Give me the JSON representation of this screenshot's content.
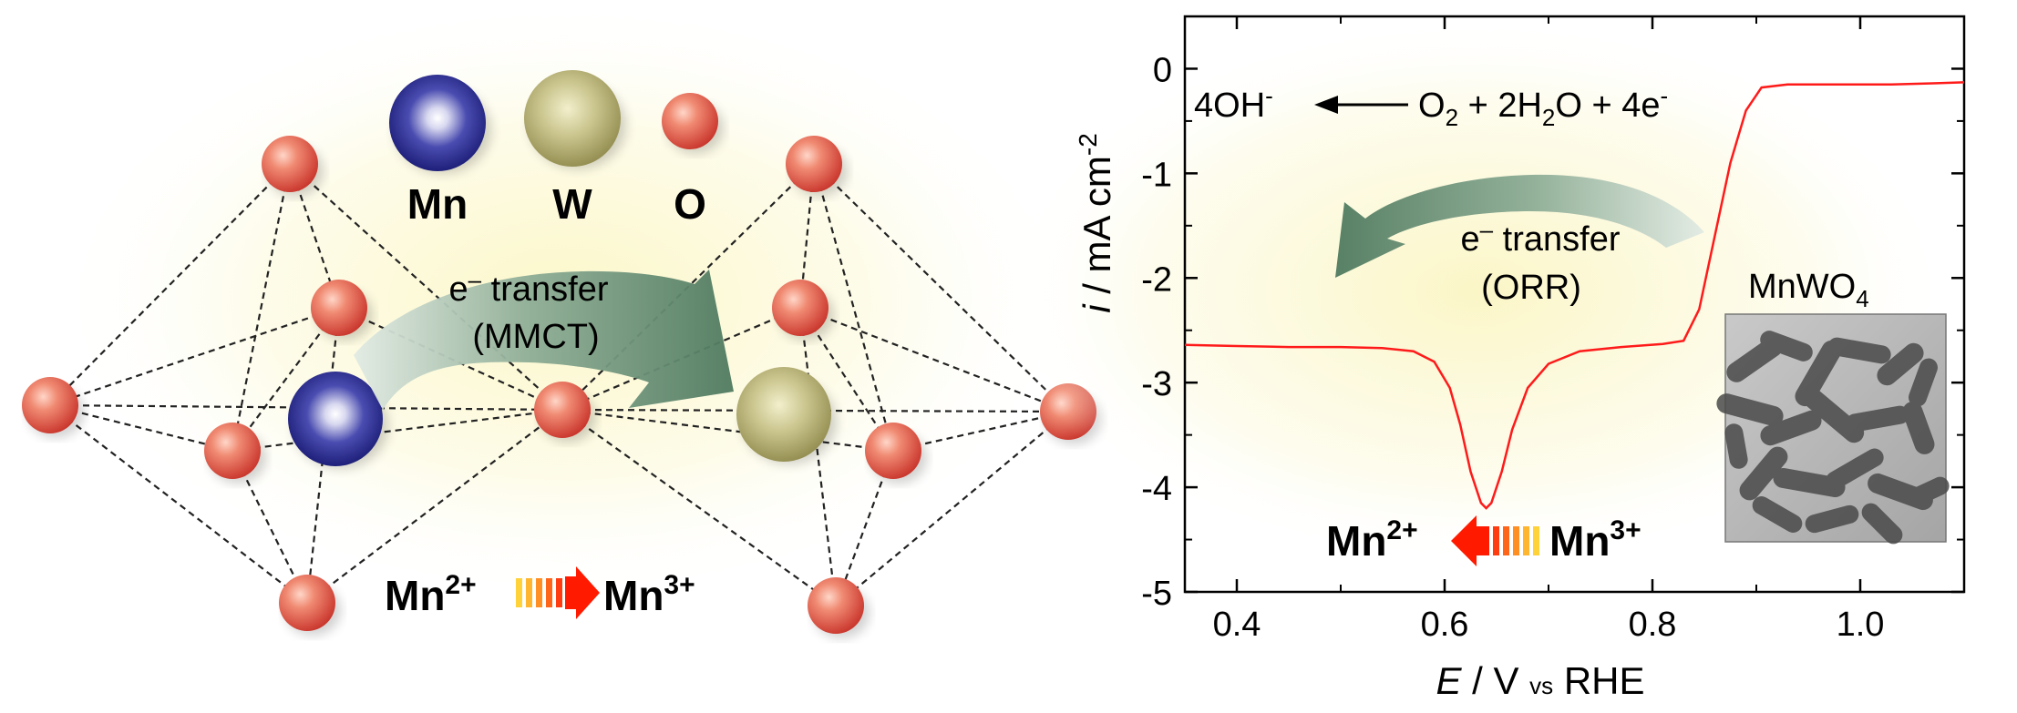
{
  "legend_atoms": [
    {
      "symbol": "Mn",
      "color": "#23249a"
    },
    {
      "symbol": "W",
      "color": "#a9a35d"
    },
    {
      "symbol": "O",
      "color": "#e5483b"
    }
  ],
  "structure": {
    "transfer_line1": "e",
    "transfer_sup": "–",
    "transfer_word": " transfer",
    "transfer_line2": "(MMCT)",
    "ox_left": "Mn",
    "ox_left_sup": "2+",
    "ox_right": "Mn",
    "ox_right_sup": "3+"
  },
  "chart_data": {
    "type": "line",
    "x_axis": {
      "label_var": "E",
      "label_unit": " / V ",
      "label_sub": "vs",
      "label_ref": " RHE",
      "range": [
        0.35,
        1.1
      ],
      "ticks": [
        "0.4",
        "0.6",
        "0.8",
        "1.0"
      ],
      "tick_values": [
        0.4,
        0.6,
        0.8,
        1.0
      ]
    },
    "y_axis": {
      "label_var": "i",
      "label_unit": " / mA cm",
      "label_sup": "-2",
      "range": [
        -5,
        0.5
      ],
      "ticks": [
        "0",
        "-1",
        "-2",
        "-3",
        "-4",
        "-5"
      ],
      "tick_values": [
        0,
        -1,
        -2,
        -3,
        -4,
        -5
      ]
    },
    "series": [
      {
        "color": "#ff1a1a",
        "points": [
          [
            0.35,
            -2.64
          ],
          [
            0.4,
            -2.65
          ],
          [
            0.45,
            -2.66
          ],
          [
            0.5,
            -2.66
          ],
          [
            0.54,
            -2.67
          ],
          [
            0.57,
            -2.7
          ],
          [
            0.59,
            -2.8
          ],
          [
            0.605,
            -3.05
          ],
          [
            0.615,
            -3.4
          ],
          [
            0.625,
            -3.85
          ],
          [
            0.635,
            -4.15
          ],
          [
            0.64,
            -4.2
          ],
          [
            0.645,
            -4.15
          ],
          [
            0.655,
            -3.85
          ],
          [
            0.665,
            -3.45
          ],
          [
            0.68,
            -3.05
          ],
          [
            0.7,
            -2.82
          ],
          [
            0.73,
            -2.7
          ],
          [
            0.77,
            -2.66
          ],
          [
            0.81,
            -2.63
          ],
          [
            0.83,
            -2.6
          ],
          [
            0.845,
            -2.3
          ],
          [
            0.86,
            -1.6
          ],
          [
            0.875,
            -0.9
          ],
          [
            0.89,
            -0.4
          ],
          [
            0.905,
            -0.18
          ],
          [
            0.93,
            -0.15
          ],
          [
            0.98,
            -0.15
          ],
          [
            1.03,
            -0.15
          ],
          [
            1.07,
            -0.14
          ],
          [
            1.1,
            -0.13
          ]
        ]
      }
    ],
    "annotations": {
      "reaction_product": "4OH",
      "reaction_product_sup": "-",
      "reaction_o2": "O",
      "reaction_o2_sub": "2",
      "reaction_mid": " + 2H",
      "reaction_h2o_sub": "2",
      "reaction_mid2": "O + 4e",
      "reaction_e_sup": "-",
      "transfer_line1": "e",
      "transfer_sup": "–",
      "transfer_word": " transfer",
      "transfer_line2": "(ORR)",
      "ox_left": "Mn",
      "ox_left_sup": "2+",
      "ox_right": "Mn",
      "ox_right_sup": "3+",
      "inset_formula": "MnWO",
      "inset_formula_sub": "4"
    }
  }
}
